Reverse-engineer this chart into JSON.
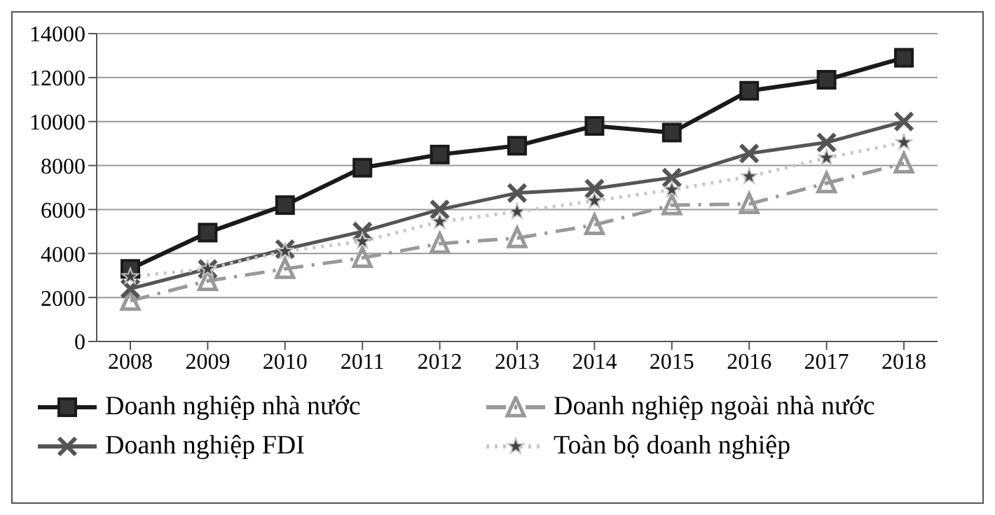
{
  "chart_data": {
    "type": "line",
    "categories": [
      "2008",
      "2009",
      "2010",
      "2011",
      "2012",
      "2013",
      "2014",
      "2015",
      "2016",
      "2017",
      "2018"
    ],
    "ylim": [
      0,
      14000
    ],
    "yticks": [
      0,
      2000,
      4000,
      6000,
      8000,
      10000,
      12000,
      14000
    ],
    "grid": "y",
    "legend": "bottom",
    "series": [
      {
        "name": "Doanh nghiệp nhà nước",
        "color": "#1a1a1a",
        "marker": "square",
        "line_style": "solid",
        "values": [
          3300,
          4950,
          6200,
          7900,
          8500,
          8900,
          9800,
          9500,
          11400,
          11900,
          12900
        ]
      },
      {
        "name": "Doanh nghiệp ngoài nhà nước",
        "color": "#999999",
        "marker": "triangle",
        "line_style": "dashed",
        "values": [
          1850,
          2750,
          3300,
          3800,
          4450,
          4700,
          5300,
          6200,
          6250,
          7200,
          8100
        ]
      },
      {
        "name": "Doanh nghiệp FDI",
        "color": "#555555",
        "marker": "cross",
        "line_style": "solid",
        "values": [
          2400,
          3300,
          4200,
          5000,
          6000,
          6750,
          6950,
          7450,
          8550,
          9050,
          10000
        ]
      },
      {
        "name": "Toàn bộ doanh nghiệp",
        "color": "#c8c8c8",
        "marker": "star",
        "line_style": "dotted",
        "values": [
          2950,
          3300,
          4100,
          4550,
          5450,
          5900,
          6400,
          6900,
          7500,
          8350,
          9050
        ]
      }
    ]
  }
}
